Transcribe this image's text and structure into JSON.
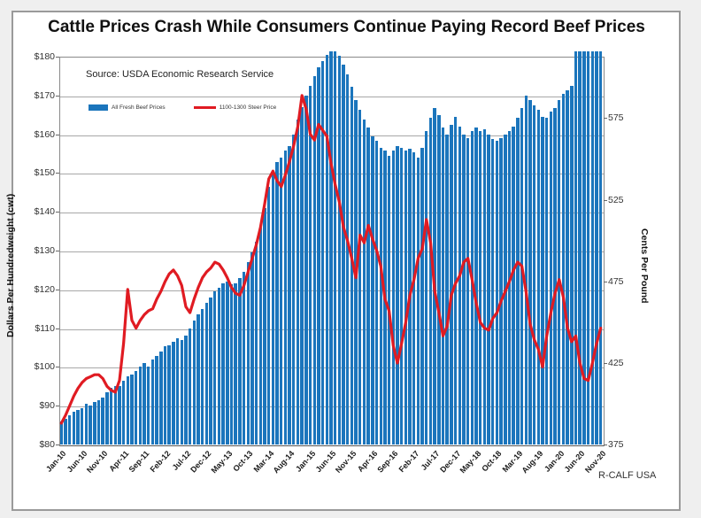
{
  "figure": {
    "title": "Cattle Prices Crash While Consumers Continue Paying Record Beef Prices",
    "source_note": "Source:  USDA Economic Research Service",
    "credit": "R-CALF USA"
  },
  "colors": {
    "bar_blue": "#1B75BC",
    "line_red": "#E01B22",
    "gridline": "#a8a8a8",
    "frame_border": "#9a9a9a",
    "plot_border": "#8a8a8a"
  },
  "legend": {
    "items": [
      {
        "label": "All Fresh Beef Prices",
        "swatch": "bar",
        "color": "#1B75BC"
      },
      {
        "label": "1100-1300 Steer Price",
        "swatch": "line",
        "color": "#E01B22"
      }
    ]
  },
  "chart_data": {
    "type": "bar+line",
    "title": "Cattle Prices Crash While Consumers Continue Paying Record Beef Prices",
    "grid": "horizontal",
    "left_axis": {
      "title": "Dollars Per Hundredweight (cwt)",
      "min": 80,
      "max": 180,
      "tick_step": 10,
      "tick_labels": [
        "$180",
        "$170",
        "$160",
        "$150",
        "$140",
        "$130",
        "$120",
        "$110",
        "$100",
        "$90",
        "$80"
      ]
    },
    "right_axis": {
      "title": "Cents Per Pound",
      "tick_labels": [
        "575",
        "525",
        "475",
        "425",
        "375"
      ],
      "tick_values": [
        575,
        525,
        475,
        425,
        375
      ],
      "bottom_value": 375,
      "top_value": 617
    },
    "x_axis": {
      "tick_every": 5,
      "label_rotation_deg": -48
    },
    "months": [
      "Jan-10",
      "Feb-10",
      "Mar-10",
      "Apr-10",
      "May-10",
      "Jun-10",
      "Jul-10",
      "Aug-10",
      "Sep-10",
      "Oct-10",
      "Nov-10",
      "Dec-10",
      "Jan-11",
      "Feb-11",
      "Mar-11",
      "Apr-11",
      "May-11",
      "Jun-11",
      "Jul-11",
      "Aug-11",
      "Sep-11",
      "Oct-11",
      "Nov-11",
      "Dec-11",
      "Jan-12",
      "Feb-12",
      "Mar-12",
      "Apr-12",
      "May-12",
      "Jun-12",
      "Jul-12",
      "Aug-12",
      "Sep-12",
      "Oct-12",
      "Nov-12",
      "Dec-12",
      "Jan-13",
      "Feb-13",
      "Mar-13",
      "Apr-13",
      "May-13",
      "Jun-13",
      "Jul-13",
      "Aug-13",
      "Sep-13",
      "Oct-13",
      "Nov-13",
      "Dec-13",
      "Jan-14",
      "Feb-14",
      "Mar-14",
      "Apr-14",
      "May-14",
      "Jun-14",
      "Jul-14",
      "Aug-14",
      "Sep-14",
      "Oct-14",
      "Nov-14",
      "Dec-14",
      "Jan-15",
      "Feb-15",
      "Mar-15",
      "Apr-15",
      "May-15",
      "Jun-15",
      "Jul-15",
      "Aug-15",
      "Sep-15",
      "Oct-15",
      "Nov-15",
      "Dec-15",
      "Jan-16",
      "Feb-16",
      "Mar-16",
      "Apr-16",
      "May-16",
      "Jun-16",
      "Jul-16",
      "Aug-16",
      "Sep-16",
      "Oct-16",
      "Nov-16",
      "Dec-16",
      "Jan-17",
      "Feb-17",
      "Mar-17",
      "Apr-17",
      "May-17",
      "Jun-17",
      "Jul-17",
      "Aug-17",
      "Sep-17",
      "Oct-17",
      "Nov-17",
      "Dec-17",
      "Jan-18",
      "Feb-18",
      "Mar-18",
      "Apr-18",
      "May-18",
      "Jun-18",
      "Jul-18",
      "Aug-18",
      "Sep-18",
      "Oct-18",
      "Nov-18",
      "Dec-18",
      "Jan-19",
      "Feb-19",
      "Mar-19",
      "Apr-19",
      "May-19",
      "Jun-19",
      "Jul-19",
      "Aug-19",
      "Sep-19",
      "Oct-19",
      "Nov-19",
      "Dec-19",
      "Jan-20",
      "Feb-20",
      "Mar-20",
      "Apr-20",
      "May-20",
      "Jun-20",
      "Jul-20",
      "Aug-20",
      "Sep-20",
      "Oct-20",
      "Nov-20"
    ],
    "series": [
      {
        "name": "All Fresh Beef Prices",
        "type": "bar",
        "axis": "right",
        "unit": "cents per pound",
        "color": "#1B75BC",
        "values": [
          389,
          391,
          393,
          395,
          396,
          397,
          400,
          399,
          401,
          402,
          404,
          407,
          410,
          411,
          411,
          414,
          417,
          418,
          420,
          423,
          425,
          423,
          427,
          429,
          432,
          435,
          436,
          438,
          440,
          439,
          442,
          446,
          451,
          455,
          458,
          462,
          465,
          469,
          471,
          474,
          475,
          473,
          474,
          477,
          481,
          487,
          493,
          499,
          508,
          520,
          533,
          542,
          548,
          551,
          555,
          558,
          565,
          574,
          582,
          589,
          595,
          601,
          606,
          610,
          614,
          616,
          616,
          613,
          608,
          602,
          594,
          586,
          580,
          574,
          569,
          564,
          561,
          557,
          555,
          552,
          555,
          558,
          557,
          555,
          556,
          554,
          551,
          557,
          567,
          575,
          581,
          577,
          569,
          565,
          571,
          576,
          570,
          565,
          563,
          567,
          569,
          567,
          568,
          565,
          562,
          561,
          563,
          565,
          567,
          570,
          575,
          581,
          589,
          586,
          583,
          580,
          576,
          575,
          579,
          581,
          586,
          590,
          592,
          595,
          616,
          616,
          616,
          616,
          616,
          616,
          616
        ]
      },
      {
        "name": "1100-1300 Steer Price",
        "type": "line",
        "axis": "left",
        "unit": "dollars per cwt",
        "color": "#E01B22",
        "values": [
          85.5,
          87.5,
          90,
          92.5,
          94.5,
          96,
          97,
          97.5,
          98,
          98,
          97,
          95,
          94,
          93.5,
          96.5,
          106,
          120,
          112,
          110,
          112,
          113.5,
          114.5,
          115,
          117.5,
          119.5,
          122,
          124,
          125,
          123.5,
          121,
          115.5,
          114,
          117.5,
          120.5,
          123,
          124.5,
          125.5,
          127,
          126.5,
          125,
          123,
          120.5,
          119,
          118.5,
          121,
          124.5,
          128,
          131.5,
          136,
          142,
          148.5,
          150.5,
          148,
          146.5,
          149.5,
          153,
          157,
          162,
          170,
          166.5,
          160,
          158.5,
          162.5,
          161,
          159.5,
          152.5,
          147,
          142.5,
          136,
          132.5,
          128,
          123,
          134,
          132,
          136.5,
          133,
          130,
          126,
          117.5,
          114.5,
          105.5,
          101,
          106,
          111.5,
          118.5,
          122.5,
          128,
          130.5,
          138,
          132,
          119.5,
          114,
          108,
          110.5,
          118.5,
          121.5,
          123.5,
          127,
          128,
          122.5,
          116.5,
          111.5,
          110,
          109.5,
          112.5,
          114,
          117,
          119.5,
          122,
          125,
          127,
          126,
          119.5,
          111,
          107,
          104.5,
          100,
          108,
          114,
          119,
          122.5,
          118,
          110,
          106.5,
          108,
          101,
          97,
          96.5,
          101,
          106,
          110
        ]
      }
    ]
  }
}
